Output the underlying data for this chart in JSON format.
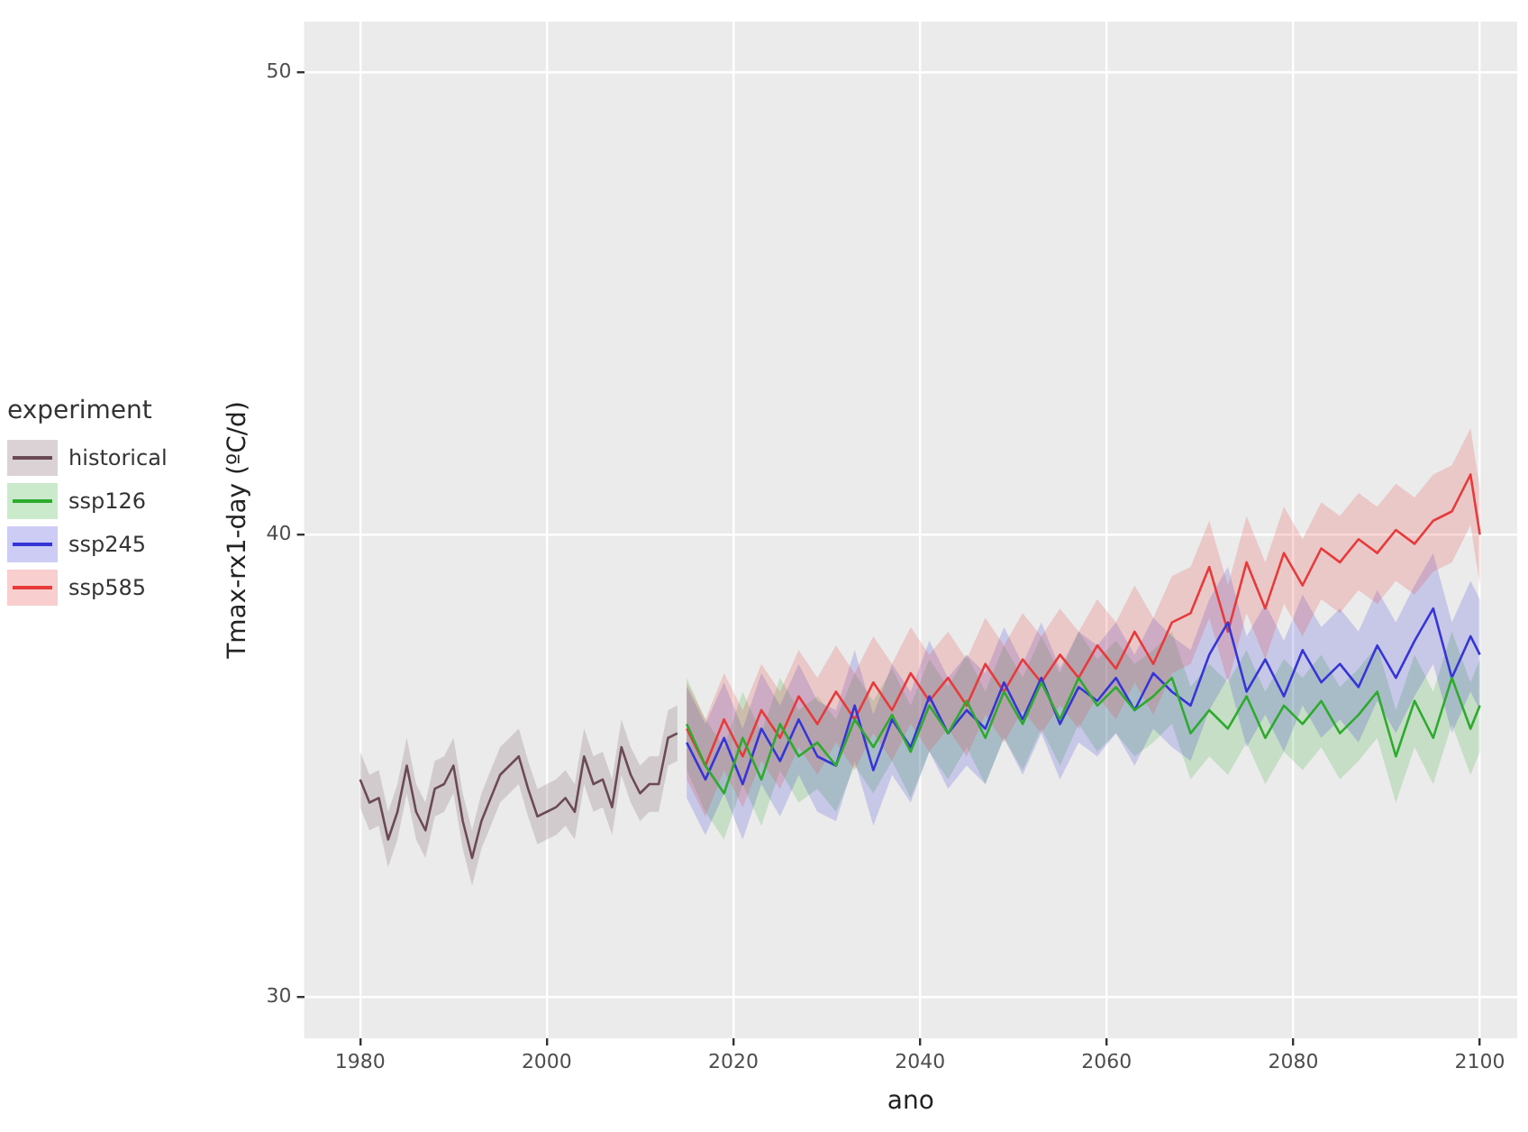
{
  "chart_data": {
    "type": "line",
    "xlabel": "ano",
    "ylabel": "Tmax-rx1-day (ºC/d)",
    "legend_title": "experiment",
    "legend": "left",
    "grid": true,
    "line_style": "solid",
    "marker": "none",
    "xlim": [
      1974,
      2104
    ],
    "xticks": [
      1980,
      2000,
      2020,
      2040,
      2060,
      2080,
      2100
    ],
    "ylim": [
      29.1,
      51.1
    ],
    "yticks": [
      30,
      40,
      50
    ],
    "series": [
      {
        "name": "historical",
        "color": "#6b4a55",
        "x": [
          1980,
          1981,
          1982,
          1983,
          1984,
          1985,
          1986,
          1987,
          1988,
          1989,
          1990,
          1991,
          1992,
          1993,
          1994,
          1995,
          1996,
          1997,
          1998,
          1999,
          2000,
          2001,
          2002,
          2003,
          2004,
          2005,
          2006,
          2007,
          2008,
          2009,
          2010,
          2011,
          2012,
          2013,
          2014
        ],
        "values": [
          34.7,
          34.2,
          34.3,
          33.4,
          34.0,
          35.0,
          34.0,
          33.6,
          34.5,
          34.6,
          35.0,
          33.8,
          33.0,
          33.8,
          34.3,
          34.8,
          35.0,
          35.2,
          34.5,
          33.9,
          34.0,
          34.1,
          34.3,
          34.0,
          35.2,
          34.6,
          34.7,
          34.1,
          35.4,
          34.8,
          34.4,
          34.6,
          34.6,
          35.6,
          35.7
        ],
        "lower": [
          34.1,
          33.6,
          33.7,
          32.8,
          33.4,
          34.4,
          33.4,
          33.0,
          33.9,
          34.0,
          34.4,
          33.2,
          32.4,
          33.2,
          33.7,
          34.2,
          34.4,
          34.6,
          33.9,
          33.3,
          33.4,
          33.5,
          33.7,
          33.4,
          34.6,
          34.0,
          34.1,
          33.5,
          34.8,
          34.2,
          33.8,
          34.0,
          34.0,
          35.0,
          35.1
        ],
        "upper": [
          35.3,
          34.8,
          34.9,
          34.0,
          34.6,
          35.6,
          34.6,
          34.2,
          35.1,
          35.2,
          35.6,
          34.4,
          33.6,
          34.4,
          34.9,
          35.4,
          35.6,
          35.8,
          35.1,
          34.5,
          34.6,
          34.7,
          34.9,
          34.6,
          35.8,
          35.2,
          35.3,
          34.7,
          36.0,
          35.4,
          35.0,
          35.2,
          35.2,
          36.2,
          36.3
        ]
      },
      {
        "name": "ssp126",
        "color": "#2eaa2e",
        "x": [
          2015,
          2017,
          2019,
          2021,
          2023,
          2025,
          2027,
          2029,
          2031,
          2033,
          2035,
          2037,
          2039,
          2041,
          2043,
          2045,
          2047,
          2049,
          2051,
          2053,
          2055,
          2057,
          2059,
          2061,
          2063,
          2065,
          2067,
          2069,
          2071,
          2073,
          2075,
          2077,
          2079,
          2081,
          2083,
          2085,
          2087,
          2089,
          2091,
          2093,
          2095,
          2097,
          2099,
          2100
        ],
        "values": [
          35.9,
          35.0,
          34.4,
          35.6,
          34.7,
          35.9,
          35.2,
          35.5,
          35.0,
          36.0,
          35.4,
          36.1,
          35.3,
          36.3,
          35.7,
          36.4,
          35.6,
          36.6,
          35.9,
          36.8,
          36.0,
          36.9,
          36.3,
          36.7,
          36.2,
          36.5,
          36.9,
          35.7,
          36.2,
          35.8,
          36.5,
          35.6,
          36.3,
          35.9,
          36.4,
          35.7,
          36.1,
          36.6,
          35.2,
          36.4,
          35.6,
          36.9,
          35.8,
          36.3
        ],
        "lower": [
          34.9,
          34.0,
          33.4,
          34.6,
          33.7,
          34.9,
          34.2,
          34.5,
          34.0,
          35.0,
          34.4,
          35.1,
          34.3,
          35.3,
          34.7,
          35.4,
          34.6,
          35.6,
          34.9,
          35.8,
          35.0,
          35.9,
          35.3,
          35.7,
          35.2,
          35.5,
          35.9,
          34.7,
          35.2,
          34.8,
          35.5,
          34.6,
          35.3,
          34.9,
          35.4,
          34.7,
          35.1,
          35.6,
          34.2,
          35.4,
          34.6,
          35.9,
          34.8,
          35.3
        ],
        "upper": [
          36.9,
          36.0,
          35.4,
          36.6,
          35.7,
          36.9,
          36.2,
          36.5,
          36.0,
          37.0,
          36.4,
          37.1,
          36.3,
          37.3,
          36.7,
          37.4,
          36.6,
          37.6,
          36.9,
          37.8,
          37.0,
          37.9,
          37.3,
          37.7,
          37.2,
          37.5,
          37.9,
          36.7,
          37.2,
          36.8,
          37.5,
          36.6,
          37.3,
          36.9,
          37.4,
          36.7,
          37.1,
          37.6,
          36.2,
          37.4,
          36.6,
          37.9,
          36.8,
          37.3
        ]
      },
      {
        "name": "ssp245",
        "color": "#3535d8",
        "x": [
          2015,
          2017,
          2019,
          2021,
          2023,
          2025,
          2027,
          2029,
          2031,
          2033,
          2035,
          2037,
          2039,
          2041,
          2043,
          2045,
          2047,
          2049,
          2051,
          2053,
          2055,
          2057,
          2059,
          2061,
          2063,
          2065,
          2067,
          2069,
          2071,
          2073,
          2075,
          2077,
          2079,
          2081,
          2083,
          2085,
          2087,
          2089,
          2091,
          2093,
          2095,
          2097,
          2099,
          2100
        ],
        "values": [
          35.5,
          34.7,
          35.6,
          34.6,
          35.8,
          35.1,
          36.0,
          35.2,
          35.0,
          36.3,
          34.9,
          36.0,
          35.4,
          36.5,
          35.7,
          36.2,
          35.8,
          36.8,
          36.0,
          36.9,
          35.9,
          36.7,
          36.4,
          36.9,
          36.2,
          37.0,
          36.6,
          36.3,
          37.4,
          38.1,
          36.6,
          37.3,
          36.5,
          37.5,
          36.8,
          37.2,
          36.7,
          37.6,
          36.9,
          37.7,
          38.4,
          36.9,
          37.8,
          37.4
        ],
        "lower": [
          34.3,
          33.5,
          34.4,
          33.4,
          34.6,
          33.9,
          34.8,
          34.0,
          33.8,
          35.1,
          33.7,
          34.8,
          34.2,
          35.3,
          34.5,
          35.0,
          34.6,
          35.6,
          34.8,
          35.7,
          34.7,
          35.5,
          35.2,
          35.7,
          35.0,
          35.8,
          35.4,
          35.1,
          36.2,
          36.9,
          35.4,
          36.1,
          35.3,
          36.3,
          35.6,
          36.0,
          35.5,
          36.4,
          35.7,
          36.5,
          37.2,
          35.7,
          36.6,
          36.2
        ],
        "upper": [
          36.7,
          35.9,
          36.8,
          35.8,
          37.0,
          36.3,
          37.2,
          36.4,
          36.2,
          37.5,
          36.1,
          37.2,
          36.6,
          37.7,
          36.9,
          37.4,
          37.0,
          38.0,
          37.2,
          38.1,
          37.1,
          37.9,
          37.6,
          38.1,
          37.4,
          38.2,
          37.8,
          37.5,
          38.6,
          39.3,
          37.8,
          38.5,
          37.7,
          38.7,
          38.0,
          38.4,
          37.9,
          38.8,
          38.1,
          38.9,
          39.6,
          38.1,
          39.0,
          38.6
        ]
      },
      {
        "name": "ssp585",
        "color": "#e83a3a",
        "x": [
          2015,
          2017,
          2019,
          2021,
          2023,
          2025,
          2027,
          2029,
          2031,
          2033,
          2035,
          2037,
          2039,
          2041,
          2043,
          2045,
          2047,
          2049,
          2051,
          2053,
          2055,
          2057,
          2059,
          2061,
          2063,
          2065,
          2067,
          2069,
          2071,
          2073,
          2075,
          2077,
          2079,
          2081,
          2083,
          2085,
          2087,
          2089,
          2091,
          2093,
          2095,
          2097,
          2099,
          2100
        ],
        "values": [
          35.8,
          35.0,
          36.0,
          35.2,
          36.2,
          35.6,
          36.5,
          35.9,
          36.6,
          36.0,
          36.8,
          36.2,
          37.0,
          36.4,
          36.9,
          36.3,
          37.2,
          36.6,
          37.3,
          36.8,
          37.4,
          36.9,
          37.6,
          37.1,
          37.9,
          37.2,
          38.1,
          38.3,
          39.3,
          37.9,
          39.4,
          38.4,
          39.6,
          38.9,
          39.7,
          39.4,
          39.9,
          39.6,
          40.1,
          39.8,
          40.3,
          40.5,
          41.3,
          40.0
        ],
        "lower": [
          34.7,
          33.9,
          34.9,
          34.1,
          35.1,
          34.5,
          35.4,
          34.8,
          35.5,
          34.9,
          35.7,
          35.1,
          35.9,
          35.3,
          35.8,
          35.2,
          36.1,
          35.5,
          36.2,
          35.7,
          36.3,
          35.8,
          36.5,
          36.0,
          36.8,
          36.1,
          37.0,
          37.2,
          38.2,
          36.8,
          38.3,
          37.3,
          38.5,
          37.8,
          38.6,
          38.3,
          38.8,
          38.5,
          39.0,
          38.7,
          39.2,
          39.4,
          40.2,
          38.9
        ],
        "upper": [
          36.8,
          36.0,
          37.0,
          36.2,
          37.2,
          36.6,
          37.5,
          36.9,
          37.6,
          37.0,
          37.8,
          37.2,
          38.0,
          37.4,
          37.9,
          37.3,
          38.2,
          37.6,
          38.3,
          37.8,
          38.4,
          37.9,
          38.6,
          38.1,
          38.9,
          38.2,
          39.1,
          39.3,
          40.3,
          38.9,
          40.4,
          39.4,
          40.6,
          39.9,
          40.7,
          40.4,
          40.9,
          40.6,
          41.1,
          40.8,
          41.3,
          41.5,
          42.3,
          41.0
        ]
      }
    ]
  }
}
